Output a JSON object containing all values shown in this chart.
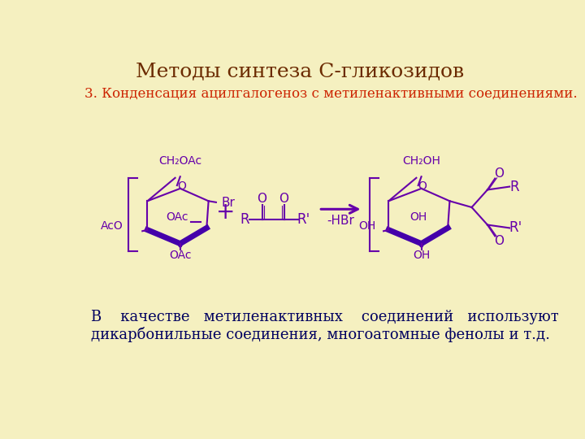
{
  "background_color": "#f5f0c0",
  "title": "Методы синтеза С-гликозидов",
  "title_color": "#6B2A00",
  "title_fontsize": 18,
  "subtitle": "3. Конденсация ацилгалогеноз с метиленактивными соединениями.",
  "subtitle_color": "#cc2200",
  "subtitle_fontsize": 12,
  "body_text_line1": "В    качестве   метиленактивных    соединений   используют",
  "body_text_line2": "дикарбонильные соединения, многоатомные фенолы и т.д.",
  "body_text_color": "#000060",
  "body_fontsize": 13,
  "purple": "#6600aa",
  "dark_purple": "#4400aa",
  "lw_thin": 1.5,
  "lw_thick": 5.0
}
